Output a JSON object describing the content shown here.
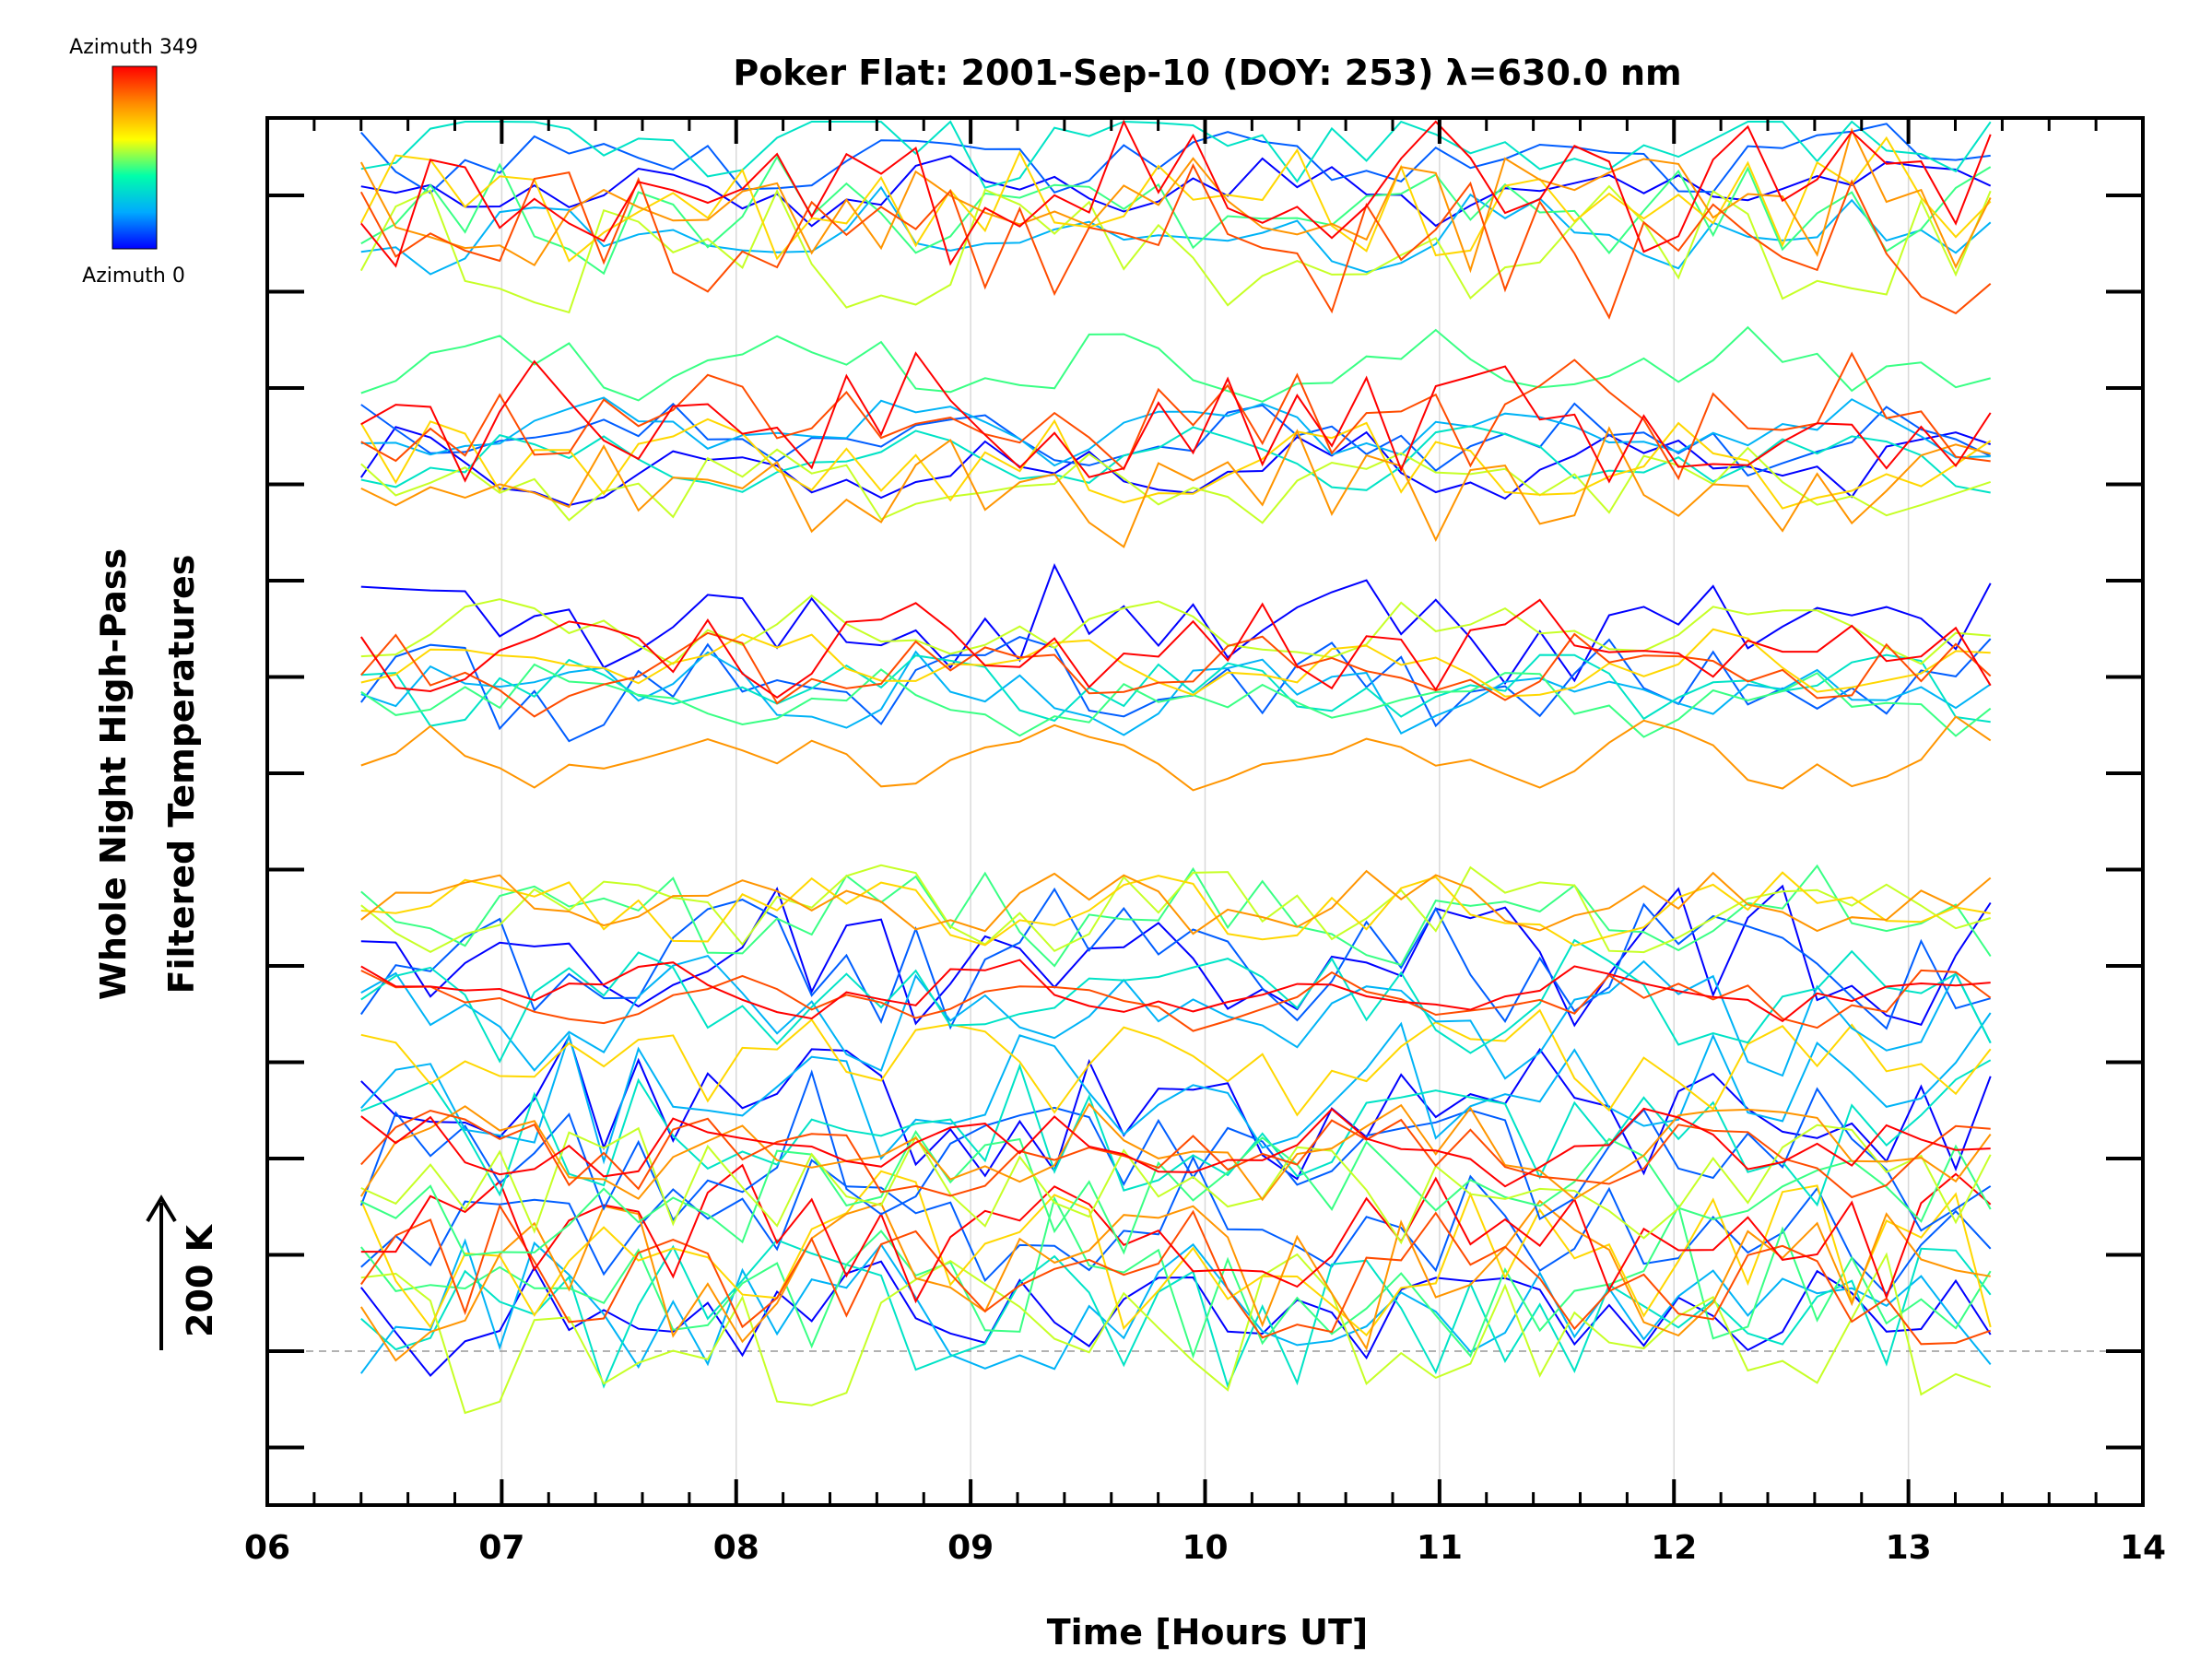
{
  "chart_data": {
    "type": "line",
    "title": "Poker Flat: 2001-Sep-10 (DOY: 253) λ=630.0 nm",
    "xlabel": "Time [Hours UT]",
    "ylabel_line1": "Whole Night High-Pass",
    "ylabel_line2": "Filtered Temperatures",
    "xlim": [
      6,
      14
    ],
    "x_ticks": [
      "06",
      "07",
      "08",
      "09",
      "10",
      "11",
      "12",
      "13",
      "14"
    ],
    "x_range_data": [
      6.4,
      13.35
    ],
    "scale_bar": {
      "label": "200 K",
      "kelvin": 200
    },
    "colorbar": {
      "top_label": "Azimuth 349",
      "bottom_label": "Azimuth 0",
      "colors": [
        "#0000ff",
        "#00aaff",
        "#00ffaa",
        "#ffff00",
        "#ff8800",
        "#ff0000"
      ]
    },
    "grid": "vertical-x",
    "series_groups": 6,
    "series_per_group": 10,
    "azimuth_range": [
      0,
      349
    ]
  }
}
